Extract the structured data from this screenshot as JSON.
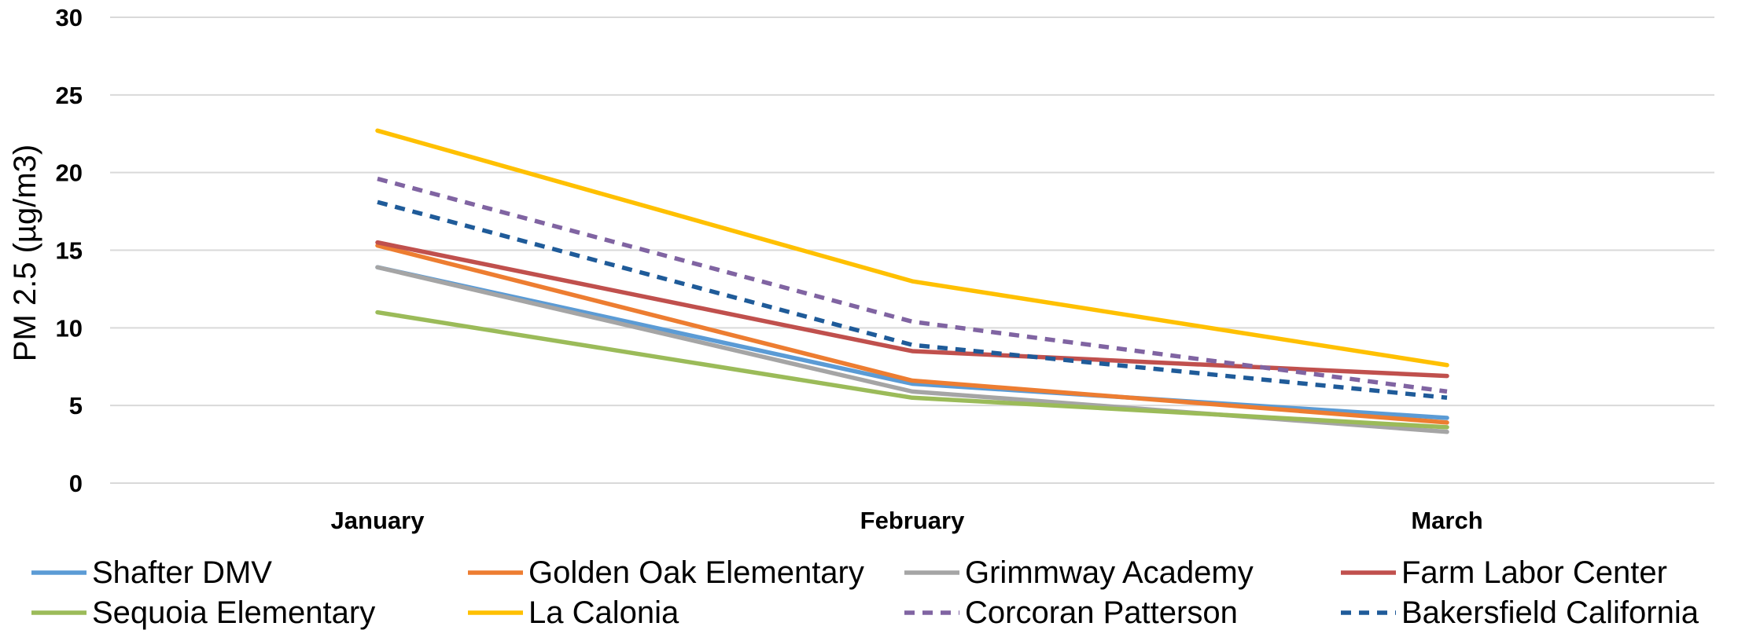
{
  "chart_data": {
    "type": "line",
    "title": "",
    "xlabel": "",
    "ylabel": "PM 2.5 (µg/m3)",
    "categories": [
      "January",
      "February",
      "March"
    ],
    "ylim": [
      0,
      30
    ],
    "yticks": [
      0,
      5,
      10,
      15,
      20,
      25,
      30
    ],
    "grid": true,
    "legend_position": "bottom",
    "series": [
      {
        "name": "Shafter DMV",
        "color": "#5B9BD5",
        "dash": false,
        "values": [
          13.9,
          6.4,
          4.2
        ]
      },
      {
        "name": "Golden Oak Elementary",
        "color": "#ED7D31",
        "dash": false,
        "values": [
          15.3,
          6.6,
          3.9
        ]
      },
      {
        "name": "Grimmway Academy",
        "color": "#A5A5A5",
        "dash": false,
        "values": [
          13.9,
          5.9,
          3.3
        ]
      },
      {
        "name": "Farm Labor Center",
        "color": "#C0504D",
        "dash": false,
        "values": [
          15.5,
          8.5,
          6.9
        ]
      },
      {
        "name": "Sequoia Elementary",
        "color": "#9BBB59",
        "dash": false,
        "values": [
          11.0,
          5.5,
          3.6
        ]
      },
      {
        "name": "La Calonia",
        "color": "#FFC000",
        "dash": false,
        "values": [
          22.7,
          13.0,
          7.6
        ]
      },
      {
        "name": "Corcoran Patterson",
        "color": "#8064A2",
        "dash": true,
        "values": [
          19.6,
          10.4,
          5.9
        ]
      },
      {
        "name": "Bakersfield California",
        "color": "#1F5B99",
        "dash": true,
        "values": [
          18.1,
          8.9,
          5.5
        ]
      }
    ]
  }
}
